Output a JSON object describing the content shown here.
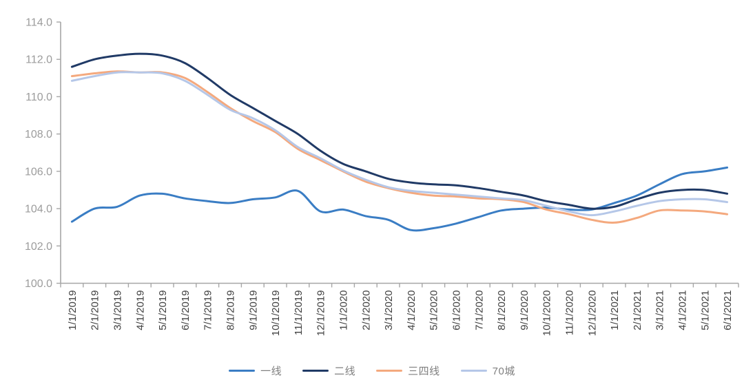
{
  "chart_data": {
    "type": "line",
    "title": "",
    "xlabel": "",
    "ylabel": "",
    "grid": false,
    "smooth_lines": true,
    "legend_position": "bottom",
    "ylim": [
      100.0,
      114.0
    ],
    "ytick_step": 2.0,
    "ytick_labels": [
      "100.0",
      "102.0",
      "104.0",
      "106.0",
      "108.0",
      "110.0",
      "112.0",
      "114.0"
    ],
    "axis_color": "#a6a6a6",
    "ytick_label_color": "#9c9c9c",
    "xtick_label_color": "#3f3f3f",
    "categories": [
      "1/1/2019",
      "2/1/2019",
      "3/1/2019",
      "4/1/2019",
      "5/1/2019",
      "6/1/2019",
      "7/1/2019",
      "8/1/2019",
      "9/1/2019",
      "10/1/2019",
      "11/1/2019",
      "12/1/2019",
      "1/1/2020",
      "2/1/2020",
      "3/1/2020",
      "4/1/2020",
      "5/1/2020",
      "6/1/2020",
      "7/1/2020",
      "8/1/2020",
      "9/1/2020",
      "10/1/2020",
      "11/1/2020",
      "12/1/2020",
      "1/1/2021",
      "2/1/2021",
      "3/1/2021",
      "4/1/2021",
      "5/1/2021",
      "6/1/2021"
    ],
    "series": [
      {
        "name": "一线",
        "color": "#3a7dc4",
        "values": [
          103.3,
          104.0,
          104.1,
          104.7,
          104.8,
          104.55,
          104.4,
          104.3,
          104.5,
          104.6,
          104.95,
          103.85,
          103.95,
          103.6,
          103.4,
          102.85,
          102.95,
          103.2,
          103.55,
          103.9,
          104.0,
          104.05,
          103.95,
          103.95,
          104.3,
          104.7,
          105.3,
          105.85,
          106.0,
          106.2
        ]
      },
      {
        "name": "二线",
        "color": "#203a66",
        "values": [
          111.6,
          112.0,
          112.2,
          112.3,
          112.2,
          111.8,
          111.0,
          110.1,
          109.4,
          108.7,
          108.0,
          107.1,
          106.4,
          106.0,
          105.6,
          105.4,
          105.3,
          105.25,
          105.1,
          104.9,
          104.7,
          104.4,
          104.2,
          104.0,
          104.1,
          104.5,
          104.85,
          105.0,
          105.0,
          104.8
        ]
      },
      {
        "name": "三四线",
        "color": "#f4a97e",
        "values": [
          111.1,
          111.25,
          111.35,
          111.3,
          111.3,
          111.0,
          110.25,
          109.4,
          108.7,
          108.1,
          107.2,
          106.6,
          106.0,
          105.45,
          105.1,
          104.85,
          104.7,
          104.65,
          104.55,
          104.5,
          104.35,
          103.95,
          103.7,
          103.4,
          103.25,
          103.5,
          103.9,
          103.9,
          103.85,
          103.7
        ]
      },
      {
        "name": "70城",
        "color": "#b5c7e8",
        "values": [
          110.85,
          111.1,
          111.3,
          111.3,
          111.25,
          110.85,
          110.1,
          109.3,
          108.85,
          108.2,
          107.3,
          106.7,
          106.05,
          105.55,
          105.15,
          104.95,
          104.85,
          104.75,
          104.65,
          104.55,
          104.45,
          104.15,
          103.85,
          103.65,
          103.85,
          104.15,
          104.4,
          104.5,
          104.5,
          104.35
        ]
      }
    ]
  }
}
